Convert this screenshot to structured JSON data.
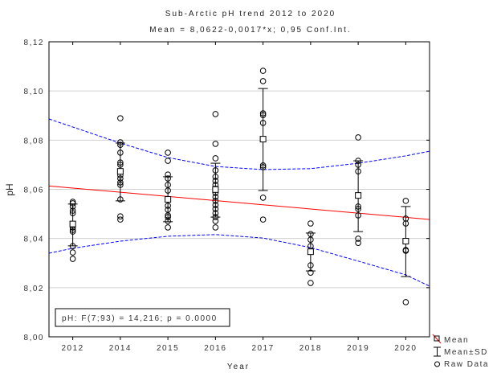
{
  "chart_data": {
    "type": "scatter",
    "title": "Sub-Arctic pH trend 2012 to 2020",
    "subtitle": "Mean = 8,0622-0,0017*x; 0,95 Conf.Int.",
    "xlabel": "Year",
    "ylabel": "pH",
    "categories": [
      "2012",
      "2014",
      "2015",
      "2016",
      "2017",
      "2018",
      "2019",
      "2020"
    ],
    "ylim": [
      8.0,
      8.12
    ],
    "yticks": [
      "8,00",
      "8,02",
      "8,04",
      "8,06",
      "8,08",
      "8,10",
      "8,12"
    ],
    "grid": true,
    "annotation": "pH:  F(7;93) = 14,216; p = 0.0000",
    "legend": {
      "placement": "bottom-right",
      "items": [
        "Mean",
        "Mean±SD",
        "Raw Data"
      ]
    },
    "colors": {
      "regression": "#ff0000",
      "confidence": "#0000ff",
      "points": "#000000",
      "grid": "#d0d0d0"
    },
    "groups": [
      {
        "year": "2012",
        "mean": 8.0459,
        "sd_low": 8.037,
        "sd_high": 8.054,
        "raw": [
          8.0549,
          8.0543,
          8.053,
          8.0513,
          8.0503,
          8.0445,
          8.0435,
          8.0428,
          8.0369,
          8.0343,
          8.0317
        ]
      },
      {
        "year": "2014",
        "mean": 8.0673,
        "sd_low": 8.0553,
        "sd_high": 8.0788,
        "raw": [
          8.0889,
          8.0791,
          8.0781,
          8.0749,
          8.0709,
          8.07,
          8.0657,
          8.0644,
          8.0628,
          8.0618,
          8.0559,
          8.049,
          8.0477
        ]
      },
      {
        "year": "2015",
        "mean": 8.0559,
        "sd_low": 8.0468,
        "sd_high": 8.0651,
        "raw": [
          8.0749,
          8.0716,
          8.066,
          8.0644,
          8.0618,
          8.0595,
          8.0559,
          8.0533,
          8.0517,
          8.0494,
          8.0487,
          8.0471,
          8.0445
        ]
      },
      {
        "year": "2016",
        "mean": 8.0599,
        "sd_low": 8.0487,
        "sd_high": 8.0706,
        "raw": [
          8.0906,
          8.0785,
          8.0726,
          8.0677,
          8.0651,
          8.0634,
          8.0618,
          8.0602,
          8.0585,
          8.0569,
          8.0553,
          8.0536,
          8.052,
          8.0503,
          8.0487,
          8.0471,
          8.0445
        ]
      },
      {
        "year": "2017",
        "mean": 8.0804,
        "sd_low": 8.0595,
        "sd_high": 8.101,
        "raw": [
          8.1082,
          8.104,
          8.0909,
          8.0902,
          8.087,
          8.0697,
          8.069,
          8.0566,
          8.0477
        ]
      },
      {
        "year": "2018",
        "mean": 8.0346,
        "sd_low": 8.0268,
        "sd_high": 8.0422,
        "raw": [
          8.0461,
          8.0418,
          8.0395,
          8.0369,
          8.0346,
          8.0291,
          8.0261,
          8.0219
        ]
      },
      {
        "year": "2019",
        "mean": 8.0575,
        "sd_low": 8.0428,
        "sd_high": 8.0716,
        "raw": [
          8.0811,
          8.0716,
          8.07,
          8.0673,
          8.053,
          8.052,
          8.0494,
          8.0399,
          8.0382
        ]
      },
      {
        "year": "2020",
        "mean": 8.0389,
        "sd_low": 8.0245,
        "sd_high": 8.053,
        "raw": [
          8.0553,
          8.0481,
          8.0461,
          8.0353,
          8.035,
          8.0141
        ]
      }
    ],
    "regression": {
      "intercept": 8.0622,
      "slope": -0.0017
    },
    "conf_upper": [
      [
        0.5,
        8.0886
      ],
      [
        2,
        8.0788
      ],
      [
        3,
        8.0729
      ],
      [
        4,
        8.0693
      ],
      [
        5,
        8.068
      ],
      [
        6,
        8.0684
      ],
      [
        7,
        8.0706
      ],
      [
        8,
        8.0736
      ],
      [
        8.5,
        8.0755
      ]
    ],
    "conf_lower": [
      [
        0.5,
        8.034
      ],
      [
        1,
        8.036
      ],
      [
        2,
        8.0389
      ],
      [
        3,
        8.0409
      ],
      [
        4,
        8.0416
      ],
      [
        5,
        8.0402
      ],
      [
        6,
        8.0363
      ],
      [
        7,
        8.0308
      ],
      [
        8,
        8.0252
      ],
      [
        8.5,
        8.0206
      ]
    ]
  }
}
